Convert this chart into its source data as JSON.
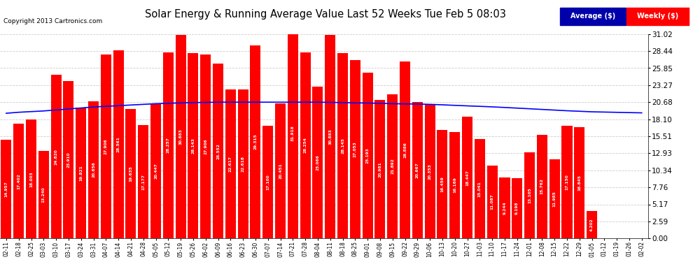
{
  "title": "Solar Energy & Running Average Value Last 52 Weeks Tue Feb 5 08:03",
  "copyright": "Copyright 2013 Cartronics.com",
  "bar_color": "#ff0000",
  "avg_line_color": "#0000ff",
  "background_color": "#ffffff",
  "plot_bg_color": "#ffffff",
  "grid_color": "#cccccc",
  "yticks": [
    0.0,
    2.59,
    5.17,
    7.76,
    10.34,
    12.93,
    15.51,
    18.1,
    20.68,
    23.27,
    25.85,
    28.44,
    31.02
  ],
  "ylim": [
    0,
    31.02
  ],
  "legend_avg_label": "Average ($)",
  "legend_weekly_label": "Weekly ($)",
  "dates": [
    "02-11",
    "02-18",
    "02-25",
    "03-03",
    "03-10",
    "03-17",
    "03-24",
    "03-31",
    "04-07",
    "04-14",
    "04-21",
    "04-28",
    "05-05",
    "05-12",
    "05-19",
    "05-26",
    "06-02",
    "06-09",
    "06-16",
    "06-23",
    "06-30",
    "07-07",
    "07-14",
    "07-21",
    "07-28",
    "08-04",
    "08-11",
    "08-18",
    "08-25",
    "09-01",
    "09-08",
    "09-15",
    "09-22",
    "09-29",
    "10-06",
    "10-13",
    "10-20",
    "10-27",
    "11-03",
    "11-10",
    "11-17",
    "11-24",
    "12-01",
    "12-08",
    "12-15",
    "12-22",
    "12-29",
    "01-05",
    "01-12",
    "01-19",
    "01-26",
    "02-02"
  ],
  "weekly_values": [
    14.957,
    17.402,
    18.003,
    13.24,
    24.82,
    23.91,
    19.821,
    20.856,
    27.906,
    28.561,
    19.635,
    17.177,
    20.447,
    28.257,
    30.883,
    28.143,
    27.906,
    26.552,
    22.617,
    22.618,
    29.315,
    17.1,
    20.451,
    31.918,
    28.254,
    23.066,
    30.883,
    28.145,
    27.053,
    25.193,
    20.981,
    21.892,
    26.886,
    20.667,
    20.353,
    16.459,
    16.169,
    18.447,
    15.041,
    11.087,
    9.244,
    9.198,
    13.105,
    15.762,
    11.985,
    17.15,
    16.845,
    4.202,
    0.0,
    0.0,
    0.0,
    0.0
  ],
  "avg_values": [
    19.0,
    19.15,
    19.25,
    19.35,
    19.5,
    19.65,
    19.8,
    19.95,
    20.05,
    20.15,
    20.25,
    20.35,
    20.45,
    20.5,
    20.58,
    20.62,
    20.65,
    20.68,
    20.68,
    20.68,
    20.68,
    20.68,
    20.68,
    20.68,
    20.68,
    20.68,
    20.65,
    20.62,
    20.58,
    20.55,
    20.5,
    20.45,
    20.42,
    20.4,
    20.35,
    20.28,
    20.2,
    20.12,
    20.05,
    19.97,
    19.88,
    19.78,
    19.68,
    19.58,
    19.48,
    19.38,
    19.3,
    19.22,
    19.18,
    19.14,
    19.1,
    19.06
  ],
  "hide_zero_bars": [
    48,
    49,
    50,
    51
  ]
}
